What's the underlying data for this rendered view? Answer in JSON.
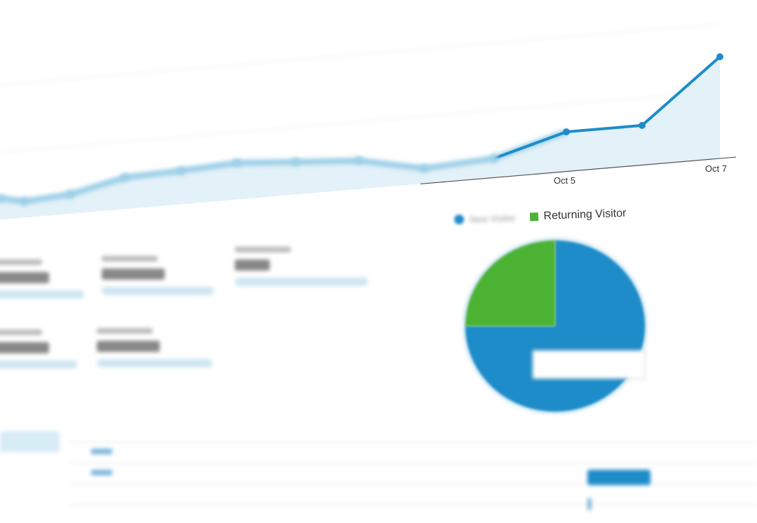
{
  "chart_data": [
    {
      "type": "area",
      "x_tick_labels": [
        "Oct 5",
        "Oct 7"
      ],
      "values": [
        21,
        16,
        19,
        31,
        33,
        36,
        32,
        28,
        15,
        19,
        39,
        39,
        100
      ],
      "ylim": [
        0,
        110
      ],
      "grid": true,
      "color": "#1d8cc9",
      "fill": "#e3f1f8"
    },
    {
      "type": "pie",
      "series": [
        {
          "name": "New Visitor",
          "value": 75,
          "color": "#1d8cc9"
        },
        {
          "name": "Returning Visitor",
          "value": 25,
          "color": "#4cb233"
        }
      ],
      "legend": "top"
    }
  ]
}
